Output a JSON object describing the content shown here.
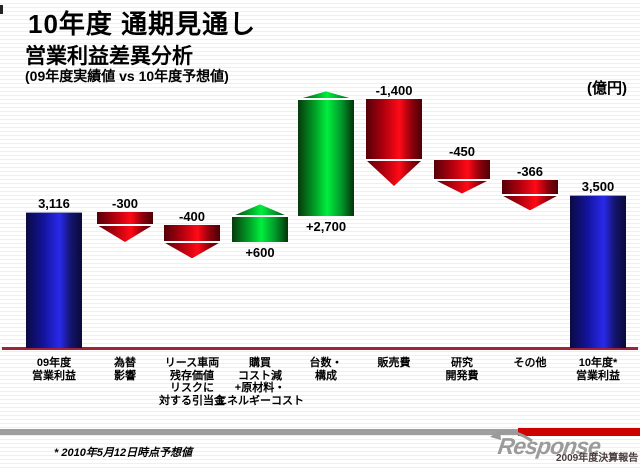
{
  "header": {
    "title": "10年度 通期見通し",
    "subtitle": "営業利益差異分析",
    "comparison": "(09年度実績値 vs 10年度予想値)",
    "unit_label": "(億円)"
  },
  "chart_data": {
    "type": "bar",
    "subtype": "waterfall",
    "title": "営業利益差異分析 (09年度実績値 vs 10年度予想値)",
    "unit": "億円",
    "baseline": 0,
    "legend": "blue = total operating profit, red = decrease, green = increase",
    "columns": [
      {
        "category": "09年度営業利益",
        "label_lines": [
          "09年度",
          "営業利益"
        ],
        "kind": "total",
        "value": 3116,
        "value_label": "3,116",
        "color": "blue"
      },
      {
        "category": "為替影響",
        "label_lines": [
          "為替",
          "影響"
        ],
        "kind": "delta",
        "value": -300,
        "value_label": "-300",
        "color": "red"
      },
      {
        "category": "リース車両残存価値リスクに対する引当金",
        "label_lines": [
          "リース車両",
          "残存価値",
          "リスクに",
          "対する引当金"
        ],
        "kind": "delta",
        "value": -400,
        "value_label": "-400",
        "color": "red"
      },
      {
        "category": "購買コスト減+原材料・エネルギーコスト",
        "label_lines": [
          "購買",
          "コスト減",
          "+原材料・",
          "エネルギーコスト"
        ],
        "kind": "delta",
        "value": 600,
        "value_label": "+600",
        "color": "green"
      },
      {
        "category": "台数・構成",
        "label_lines": [
          "台数・",
          "構成"
        ],
        "kind": "delta",
        "value": 2700,
        "value_label": "+2,700",
        "color": "green"
      },
      {
        "category": "販売費",
        "label_lines": [
          "販売費"
        ],
        "kind": "delta",
        "value": -1400,
        "value_label": "-1,400",
        "color": "red"
      },
      {
        "category": "研究開発費",
        "label_lines": [
          "研究",
          "開発費"
        ],
        "kind": "delta",
        "value": -450,
        "value_label": "-450",
        "color": "red"
      },
      {
        "category": "その他",
        "label_lines": [
          "その他"
        ],
        "kind": "delta",
        "value": -366,
        "value_label": "-366",
        "color": "red"
      },
      {
        "category": "10年度*営業利益",
        "label_lines": [
          "10年度*",
          "営業利益"
        ],
        "kind": "total",
        "value": 3500,
        "value_label": "3,500",
        "color": "blue"
      }
    ]
  },
  "footer": {
    "footnote": "* 2010年5月12日時点予想値",
    "watermark_text": "Response",
    "report_label": "2009年度決算報告"
  },
  "colors": {
    "total_blue": "#2929ec",
    "decrease_red": "#ff0a16",
    "increase_green": "#00ee3e",
    "axis_line": "#a02336",
    "footer_gray_band": "#9e9e9e",
    "footer_red_band": "#cf0000"
  },
  "icons": {
    "watermark_arrow": "left swoosh arrow"
  }
}
